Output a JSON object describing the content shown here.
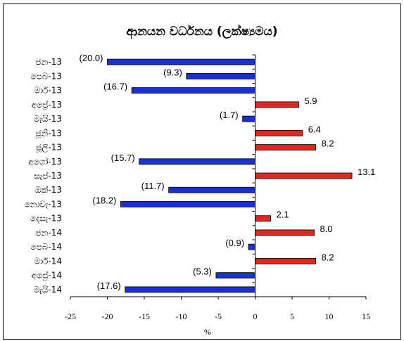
{
  "chart_data": {
    "type": "bar",
    "orientation": "horizontal",
    "title": "ආනයන වර්ධනය (ලක්ෂ්‍යමය)",
    "xlabel": "%",
    "ylabel": "",
    "xlim": [
      -25,
      15
    ],
    "xticks": [
      -25,
      -20,
      -15,
      -10,
      -5,
      0,
      5,
      10,
      15
    ],
    "grid": false,
    "legend": "none",
    "categories": [
      "ජන-13",
      "පෙබ-13",
      "මාර්-13",
      "අප්‍රේ-13",
      "මැයි-13",
      "ජූනි-13",
      "ජූලි-13",
      "අගෝ-13",
      "සැප්-13",
      "ඔක්-13",
      "නොවැ-13",
      "දෙසැ-13",
      "ජන-14",
      "පෙබ-14",
      "මාර්-14",
      "අප්‍රේ-14",
      "මැයි-14"
    ],
    "values": [
      -20.0,
      -9.3,
      -16.7,
      5.9,
      -1.7,
      6.4,
      8.2,
      -15.7,
      13.1,
      -11.7,
      -18.2,
      2.1,
      8.0,
      -0.9,
      8.2,
      -5.3,
      -17.6
    ],
    "data_labels": [
      "(20.0)",
      "(9.3)",
      "(16.7)",
      "5.9",
      "(1.7)",
      "6.4",
      "8.2",
      "(15.7)",
      "13.1",
      "(11.7)",
      "(18.2)",
      "2.1",
      "8.0",
      "(0.9)",
      "8.2",
      "(5.3)",
      "(17.6)"
    ],
    "colors": {
      "negative": "#1b2fd6",
      "positive": "#e0281e",
      "outline": "#000000"
    }
  }
}
